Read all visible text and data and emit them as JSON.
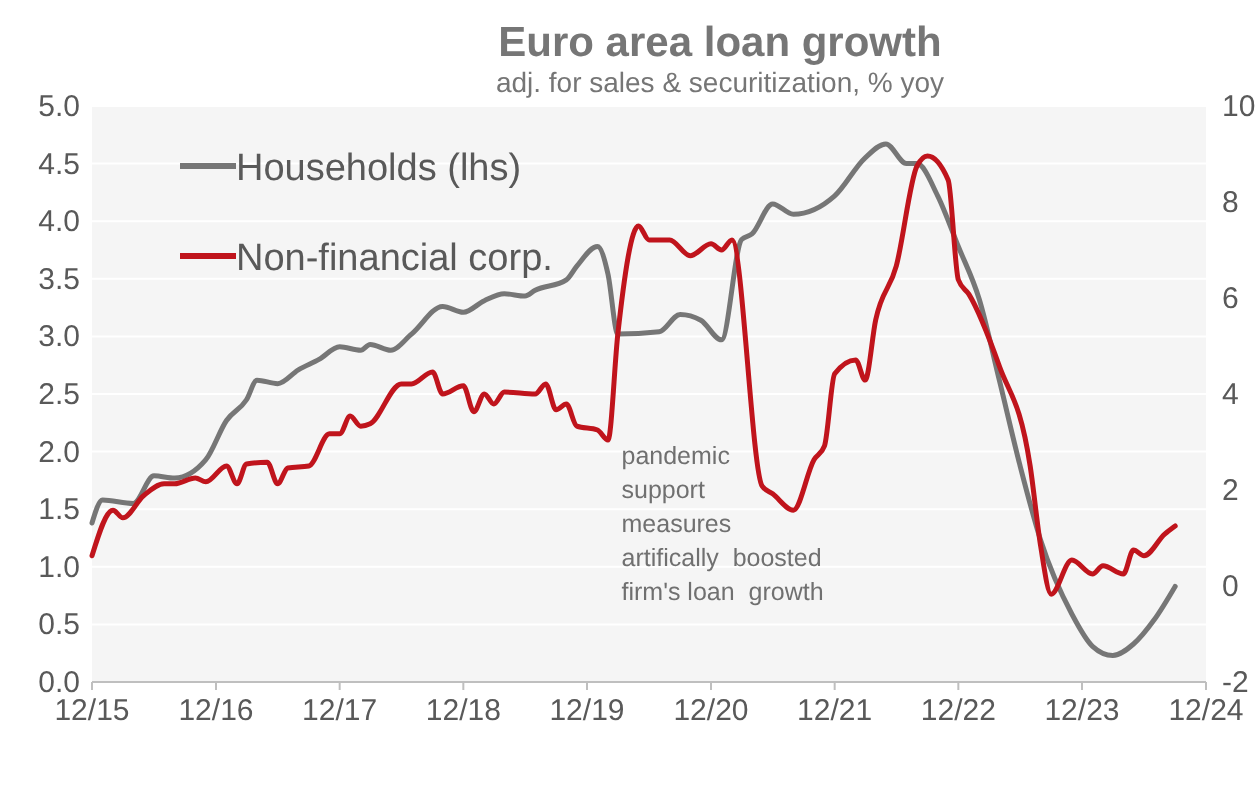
{
  "chart_data": {
    "type": "line",
    "title": "Euro area loan growth",
    "subtitle": "adj. for sales & securitization, % yoy",
    "annotations": [
      "pandemic\nsupport\nmeasures\nartifically  boosted\nfirm's loan  growth"
    ],
    "xlim": [
      "2015-12",
      "2024-12"
    ],
    "xticks": [
      {
        "value": "2015-12",
        "label": "12/15"
      },
      {
        "value": "2016-12",
        "label": "12/16"
      },
      {
        "value": "2017-12",
        "label": "12/17"
      },
      {
        "value": "2018-12",
        "label": "12/18"
      },
      {
        "value": "2019-12",
        "label": "12/19"
      },
      {
        "value": "2020-12",
        "label": "12/20"
      },
      {
        "value": "2021-12",
        "label": "12/21"
      },
      {
        "value": "2022-12",
        "label": "12/22"
      },
      {
        "value": "2023-12",
        "label": "12/23"
      },
      {
        "value": "2024-12",
        "label": "12/24"
      }
    ],
    "ylim": [
      0,
      5
    ],
    "yticks": [
      {
        "value": 0,
        "label": "0.0"
      },
      {
        "value": 0.5,
        "label": "0.5"
      },
      {
        "value": 1,
        "label": "1.0"
      },
      {
        "value": 1.5,
        "label": "1.5"
      },
      {
        "value": 2,
        "label": "2.0"
      },
      {
        "value": 2.5,
        "label": "2.5"
      },
      {
        "value": 3,
        "label": "3.0"
      },
      {
        "value": 3.5,
        "label": "3.5"
      },
      {
        "value": 4,
        "label": "4.0"
      },
      {
        "value": 4.5,
        "label": "4.5"
      },
      {
        "value": 5,
        "label": "5.0"
      }
    ],
    "y2lim": [
      -2,
      10
    ],
    "y2ticks": [
      -2,
      0,
      2,
      4,
      6,
      8,
      10
    ],
    "grid": "y",
    "legend": "top left",
    "line_style": "solid",
    "marker": "none",
    "series": [
      {
        "name": "Households (lhs)",
        "color": "#767676",
        "x": [
          "2015-12",
          "2016-01",
          "2016-04",
          "2016-06",
          "2016-08",
          "2016-11",
          "2017-01",
          "2017-03",
          "2017-04",
          "2017-06",
          "2017-08",
          "2017-10",
          "2017-12",
          "2018-02",
          "2018-03",
          "2018-05",
          "2018-07",
          "2018-10",
          "2018-12",
          "2019-02",
          "2019-04",
          "2019-06",
          "2019-07",
          "2019-10",
          "2019-11",
          "2020-01",
          "2020-02",
          "2020-03",
          "2020-07",
          "2020-09",
          "2020-11",
          "2021-01",
          "2021-03",
          "2021-04",
          "2021-06",
          "2021-08",
          "2021-12",
          "2022-03",
          "2022-05",
          "2022-07",
          "2022-08",
          "2022-10",
          "2022-12",
          "2023-02",
          "2023-04",
          "2023-06",
          "2023-08",
          "2023-11",
          "2024-01",
          "2024-03",
          "2024-05",
          "2024-07",
          "2024-09"
        ],
        "values": [
          1.38,
          1.58,
          1.55,
          1.79,
          1.77,
          1.93,
          2.27,
          2.45,
          2.62,
          2.59,
          2.71,
          2.8,
          2.91,
          2.88,
          2.93,
          2.88,
          3.02,
          3.26,
          3.21,
          3.31,
          3.37,
          3.35,
          3.4,
          3.49,
          3.61,
          3.78,
          3.54,
          3.02,
          3.04,
          3.19,
          3.14,
          2.97,
          3.84,
          3.89,
          4.15,
          4.06,
          4.22,
          4.55,
          4.67,
          4.5,
          4.5,
          4.22,
          3.78,
          3.32,
          2.62,
          1.88,
          1.23,
          0.59,
          0.31,
          0.23,
          0.33,
          0.54,
          0.83
        ]
      },
      {
        "name": "Non-financial corp.",
        "color": "#c0141c",
        "axis": "y2",
        "x": [
          "2015-12",
          "2016-02",
          "2016-03",
          "2016-05",
          "2016-07",
          "2016-08",
          "2016-10",
          "2016-11",
          "2017-01",
          "2017-02",
          "2017-03",
          "2017-05",
          "2017-06",
          "2017-07",
          "2017-09",
          "2017-11",
          "2017-12",
          "2018-01",
          "2018-02",
          "2018-03",
          "2018-06",
          "2018-07",
          "2018-09",
          "2018-10",
          "2018-12",
          "2019-01",
          "2019-02",
          "2019-03",
          "2019-04",
          "2019-07",
          "2019-08",
          "2019-09",
          "2019-10",
          "2019-11",
          "2020-01",
          "2020-02",
          "2020-03",
          "2020-05",
          "2020-06",
          "2020-08",
          "2020-10",
          "2020-12",
          "2021-01",
          "2021-02",
          "2021-05",
          "2021-06",
          "2021-08",
          "2021-10",
          "2021-11",
          "2021-12",
          "2022-02",
          "2022-03",
          "2022-04",
          "2022-06",
          "2022-08",
          "2022-09",
          "2022-11",
          "2022-12",
          "2023-01",
          "2023-04",
          "2023-07",
          "2023-08",
          "2023-09",
          "2023-11",
          "2024-01",
          "2024-02",
          "2024-04",
          "2024-05",
          "2024-06",
          "2024-08",
          "2024-09"
        ],
        "values": [
          0.63,
          1.58,
          1.42,
          1.88,
          2.13,
          2.13,
          2.25,
          2.17,
          2.5,
          2.13,
          2.54,
          2.58,
          2.13,
          2.46,
          2.5,
          3.17,
          3.17,
          3.54,
          3.33,
          3.38,
          4.21,
          4.21,
          4.46,
          4.0,
          4.17,
          3.63,
          4.0,
          3.79,
          4.04,
          4.0,
          4.21,
          3.67,
          3.79,
          3.33,
          3.25,
          3.04,
          5.25,
          7.5,
          7.21,
          7.21,
          6.88,
          7.13,
          7.0,
          7.21,
          2.08,
          1.92,
          1.58,
          2.63,
          2.92,
          4.42,
          4.71,
          4.29,
          5.54,
          6.67,
          8.75,
          8.96,
          8.46,
          6.38,
          6.08,
          4.58,
          2.5,
          0.83,
          -0.17,
          0.54,
          0.25,
          0.42,
          0.25,
          0.75,
          0.63,
          1.08,
          1.25
        ]
      }
    ]
  }
}
